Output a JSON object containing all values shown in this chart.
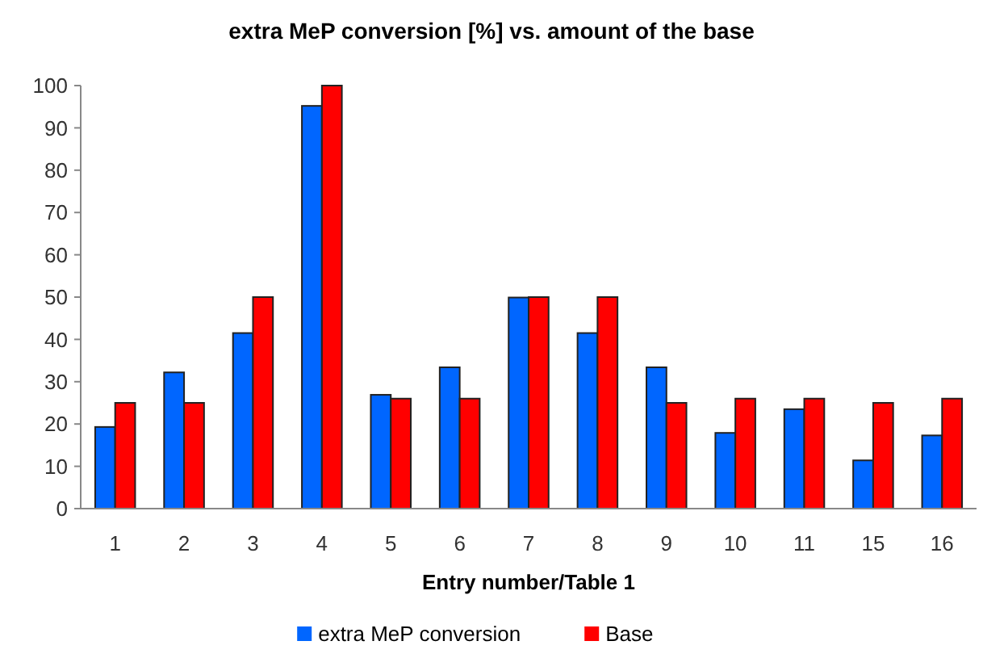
{
  "chart_data": {
    "type": "bar",
    "title": "extra MeP conversion [%] vs. amount of the base",
    "xlabel": "Entry number/Table 1",
    "categories": [
      "1",
      "2",
      "3",
      "4",
      "5",
      "6",
      "7",
      "8",
      "9",
      "10",
      "11",
      "15",
      "16"
    ],
    "series": [
      {
        "name": "extra MeP conversion",
        "color": "#0066ff",
        "values": [
          19.3,
          32.2,
          41.5,
          95.2,
          26.9,
          33.4,
          49.9,
          41.5,
          33.4,
          17.9,
          23.5,
          11.4,
          17.3
        ]
      },
      {
        "name": "Base",
        "color": "#ff0000",
        "values": [
          25,
          25,
          50,
          100,
          26,
          26,
          50,
          50,
          25,
          26,
          26,
          25,
          26
        ]
      }
    ],
    "ylim": [
      0,
      100
    ],
    "yticks": [
      0,
      10,
      20,
      30,
      40,
      50,
      60,
      70,
      80,
      90,
      100
    ],
    "grid": false,
    "legend": "bottom"
  }
}
